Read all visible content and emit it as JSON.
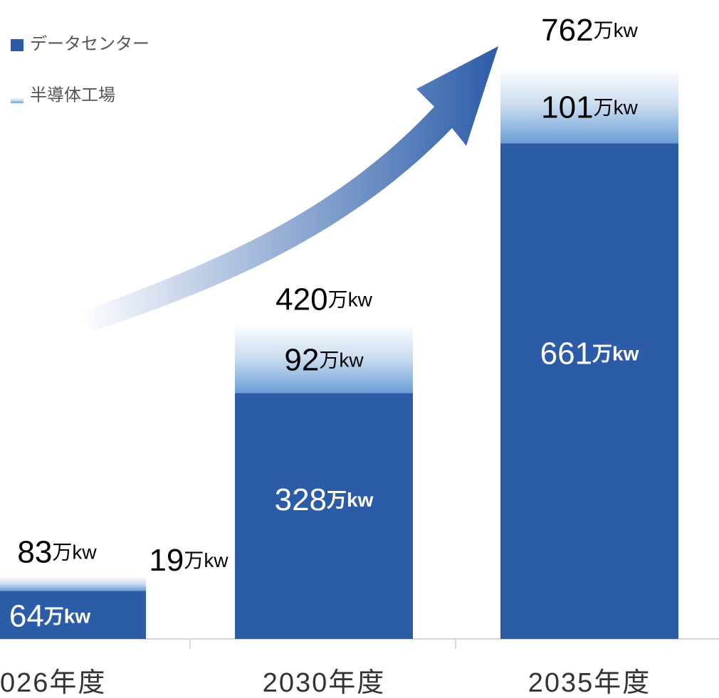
{
  "chart_data": {
    "type": "stacked_bar",
    "categories": [
      "026年度",
      "2030年度",
      "2035年度"
    ],
    "series": [
      {
        "name": "データセンター",
        "color": "#2c5ca8",
        "values": [
          64,
          328,
          661
        ],
        "value_labels": [
          "64万kw",
          "328万kw",
          "661万kw"
        ]
      },
      {
        "name": "半導体工場",
        "color": "#8fb8e0",
        "values": [
          19,
          92,
          101
        ],
        "value_labels": [
          "19万kw",
          "92万kw",
          "101万kw"
        ]
      }
    ],
    "totals": {
      "values": [
        83,
        420,
        762
      ],
      "value_labels": [
        "83万kw",
        "420万kw",
        "762万kw"
      ]
    },
    "legend": "upper left"
  }
}
